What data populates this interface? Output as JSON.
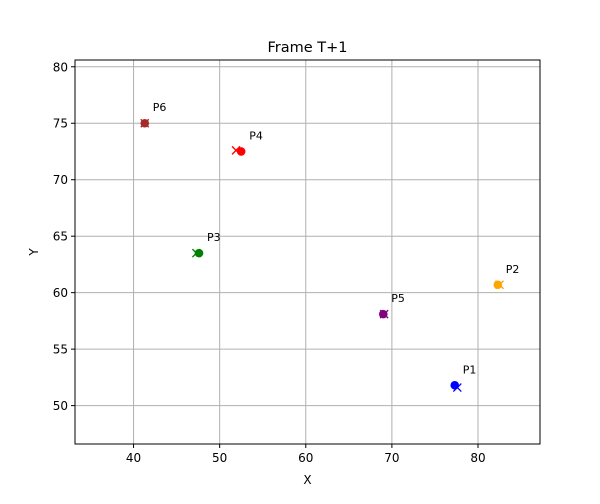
{
  "chart_data": {
    "type": "scatter",
    "title": "Frame T+1",
    "xlabel": "X",
    "ylabel": "Y",
    "xlim": [
      33.2,
      87.2
    ],
    "ylim": [
      46.6,
      80.6
    ],
    "xticks": [
      40,
      50,
      60,
      70,
      80
    ],
    "yticks": [
      50,
      55,
      60,
      65,
      70,
      75,
      80
    ],
    "grid": true,
    "legend": "none",
    "point_labels_shown": true,
    "series": [
      {
        "label": "P1",
        "color": "#0000ff",
        "current": {
          "x": 77.3,
          "y": 51.8
        },
        "predicted": {
          "x": 77.6,
          "y": 51.6
        }
      },
      {
        "label": "P2",
        "color": "#ffa500",
        "current": {
          "x": 82.3,
          "y": 60.7
        },
        "predicted": {
          "x": 82.5,
          "y": 60.7
        }
      },
      {
        "label": "P3",
        "color": "#008000",
        "current": {
          "x": 47.6,
          "y": 63.5
        },
        "predicted": {
          "x": 47.3,
          "y": 63.5
        }
      },
      {
        "label": "P4",
        "color": "#ff0000",
        "current": {
          "x": 52.5,
          "y": 72.5
        },
        "predicted": {
          "x": 51.9,
          "y": 72.6
        }
      },
      {
        "label": "P5",
        "color": "#800080",
        "current": {
          "x": 69.0,
          "y": 58.1
        },
        "predicted": {
          "x": 69.1,
          "y": 58.1
        }
      },
      {
        "label": "P6",
        "color": "#a52a2a",
        "current": {
          "x": 41.3,
          "y": 75.0
        },
        "predicted": {
          "x": 41.3,
          "y": 75.0
        }
      }
    ]
  }
}
